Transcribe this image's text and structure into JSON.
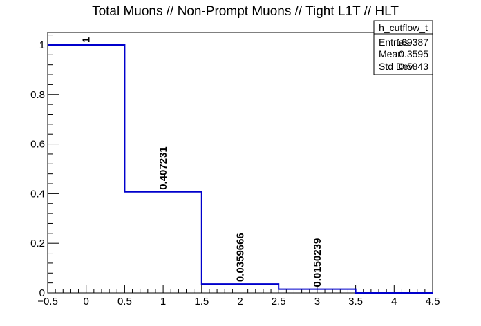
{
  "chart_data": {
    "type": "histogram",
    "title": "Total Muons // Non-Prompt Muons // Tight L1T // HLT",
    "xlabel": "",
    "ylabel": "",
    "xlim": [
      -0.5,
      4.5
    ],
    "ylim": [
      0,
      1.05
    ],
    "bins": [
      {
        "low": -0.5,
        "high": 0.5,
        "value": 1,
        "label": "1"
      },
      {
        "low": 0.5,
        "high": 1.5,
        "value": 0.407231,
        "label": "0.407231"
      },
      {
        "low": 1.5,
        "high": 2.5,
        "value": 0.0359666,
        "label": "0.0359666"
      },
      {
        "low": 2.5,
        "high": 3.5,
        "value": 0.0150239,
        "label": "0.0150239"
      },
      {
        "low": 3.5,
        "high": 4.5,
        "value": 0,
        "label": ""
      }
    ],
    "x_ticks": [
      {
        "value": -0.5,
        "label": "−0.5"
      },
      {
        "value": 0,
        "label": "0"
      },
      {
        "value": 0.5,
        "label": "0.5"
      },
      {
        "value": 1,
        "label": "1"
      },
      {
        "value": 1.5,
        "label": "1.5"
      },
      {
        "value": 2,
        "label": "2"
      },
      {
        "value": 2.5,
        "label": "2.5"
      },
      {
        "value": 3,
        "label": "3"
      },
      {
        "value": 3.5,
        "label": "3.5"
      },
      {
        "value": 4,
        "label": "4"
      },
      {
        "value": 4.5,
        "label": "4.5"
      }
    ],
    "y_ticks": [
      {
        "value": 0,
        "label": "0"
      },
      {
        "value": 0.2,
        "label": "0.2"
      },
      {
        "value": 0.4,
        "label": "0.4"
      },
      {
        "value": 0.6,
        "label": "0.6"
      },
      {
        "value": 0.8,
        "label": "0.8"
      },
      {
        "value": 1,
        "label": "1"
      }
    ],
    "line_color": "#0000cc",
    "grid": false,
    "stats_box": {
      "title": "h_cutflow_t",
      "rows": [
        {
          "label": "Entries",
          "value": "109387"
        },
        {
          "label": "Mean",
          "value": "0.3595"
        },
        {
          "label": "Std Dev",
          "value": "0.5843"
        }
      ]
    }
  }
}
